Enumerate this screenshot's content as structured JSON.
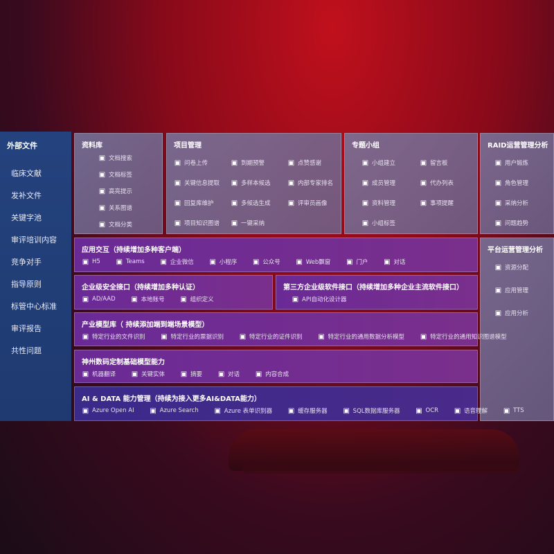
{
  "sidebar": {
    "title": "外部文件",
    "items": [
      "临床文献",
      "发补文件",
      "关键字池",
      "审评培训内容",
      "竞争对手",
      "指导原则",
      "标管中心标准",
      "审评报告",
      "共性问题"
    ]
  },
  "library": {
    "title": "资料库",
    "items": [
      "文档搜索",
      "文档标签",
      "高亮提示",
      "关系图谱",
      "文档分类"
    ]
  },
  "project": {
    "title": "项目管理",
    "items": [
      "问卷上传",
      "到期预警",
      "点赞感谢",
      "关键信息提取",
      "多样本候选",
      "内部专家排名",
      "回复库维护",
      "多候选生成",
      "评审员画像",
      "项目知识图谱",
      "一键采纳"
    ]
  },
  "group": {
    "title": "专题小组",
    "items": [
      "小组建立",
      "留言板",
      "成员管理",
      "代办列表",
      "资料管理",
      "事项提醒",
      "小组标签"
    ]
  },
  "raid": {
    "title": "RAID运营管理分析",
    "items": [
      "用户锻炼",
      "角色管理",
      "采纳分析",
      "问题趋势"
    ]
  },
  "platform": {
    "title": "平台运营管理分析",
    "items": [
      "资源分配",
      "应用管理",
      "应用分析"
    ]
  },
  "app": {
    "title": "应用交互（持续增加多种客户端）",
    "items": [
      "H5",
      "Teams",
      "企业微信",
      "小程序",
      "公众号",
      "Web飘窗",
      "门户",
      "对话"
    ]
  },
  "security": {
    "title": "企业级安全接口（持续增加多种认证）",
    "items": [
      "AD/AAD",
      "本地账号",
      "组织定义"
    ]
  },
  "third": {
    "title": "第三方企业级软件接口（持续增加多种企业主流软件接口）",
    "items": [
      "API自动化设计器"
    ]
  },
  "industry": {
    "title": "产业模型库（ 持续添加端到端场景模型）",
    "items": [
      "特定行业的文件识别",
      "特定行业的票据识别",
      "特定行业的证件识别",
      "特定行业的通用数据分析模型",
      "特定行业的通用知识图谱模型"
    ]
  },
  "base": {
    "title": "神州数码定制基础模型能力",
    "items": [
      "机器翻译",
      "关键实体",
      "摘要",
      "对话",
      "内容合成"
    ]
  },
  "ai": {
    "title": "AI & DATA 能力管理（持续为接入更多AI&DATA能力）",
    "items": [
      "Azure Open AI",
      "Azure Search",
      "Azure 表单识别器",
      "缓存服务器",
      "SQL数据库服务器",
      "OCR",
      "语音理解",
      "TTS"
    ]
  }
}
